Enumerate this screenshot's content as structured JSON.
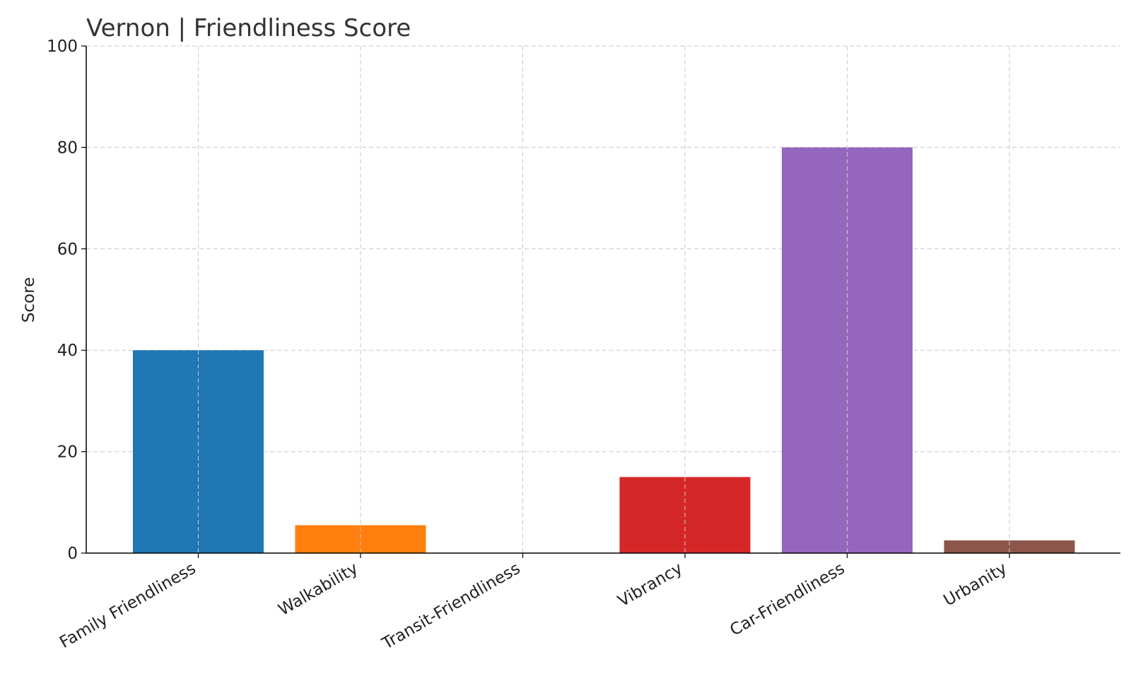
{
  "chart_data": {
    "type": "bar",
    "title": "Vernon |  Friendliness Score",
    "xlabel": "",
    "ylabel": "Score",
    "ylim": [
      0,
      100
    ],
    "yticks": [
      "0",
      "20",
      "40",
      "60",
      "80",
      "100"
    ],
    "grid": true,
    "categories": [
      "Family Friendliness",
      "Walkability",
      "Transit-Friendliness",
      "Vibrancy",
      "Car-Friendliness",
      "Urbanity"
    ],
    "values": [
      40,
      5.5,
      0,
      15,
      80,
      2.5
    ],
    "colors": [
      "#1f77b4",
      "#ff7f0e",
      "#2ca02c",
      "#d62728",
      "#9467bd",
      "#8c564b"
    ]
  }
}
